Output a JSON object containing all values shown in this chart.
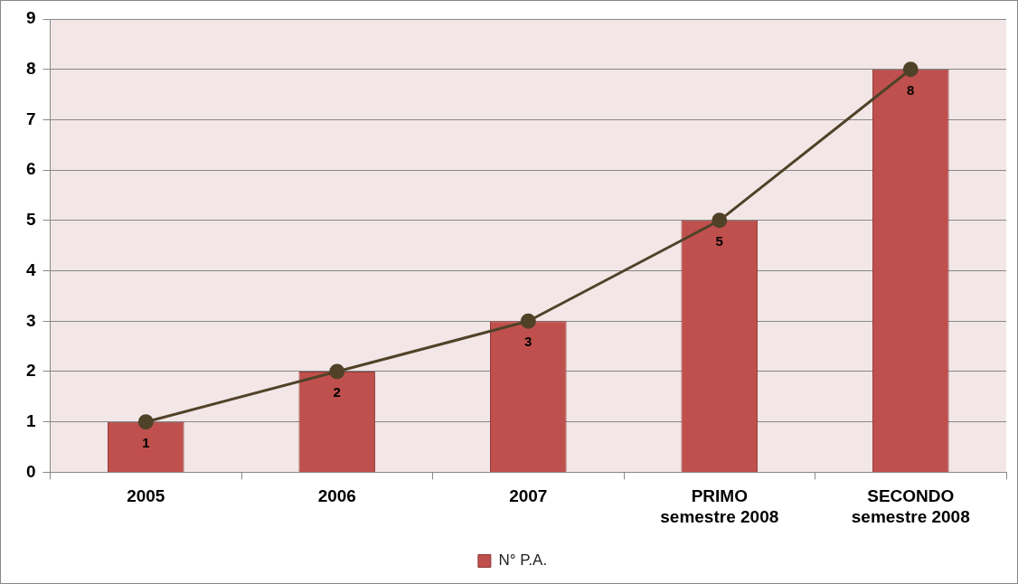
{
  "chart_data": {
    "type": "bar",
    "categories": [
      "2005",
      "2006",
      "2007",
      "PRIMO\nsemestre 2008",
      "SECONDO\nsemestre 2008"
    ],
    "series": [
      {
        "name": "N° P.A.",
        "color": "#c0504d",
        "values": [
          1,
          2,
          3,
          5,
          8
        ],
        "value_labels": [
          "1",
          "2",
          "3",
          "5",
          "8"
        ]
      },
      {
        "type": "line",
        "color": "#4f4228",
        "values": [
          1,
          2,
          3,
          5,
          8
        ]
      }
    ],
    "ylim": [
      0,
      9
    ],
    "yticks": [
      0,
      1,
      2,
      3,
      4,
      5,
      6,
      7,
      8,
      9
    ],
    "grid": "y",
    "legend": "bottom",
    "marker": "circle"
  }
}
